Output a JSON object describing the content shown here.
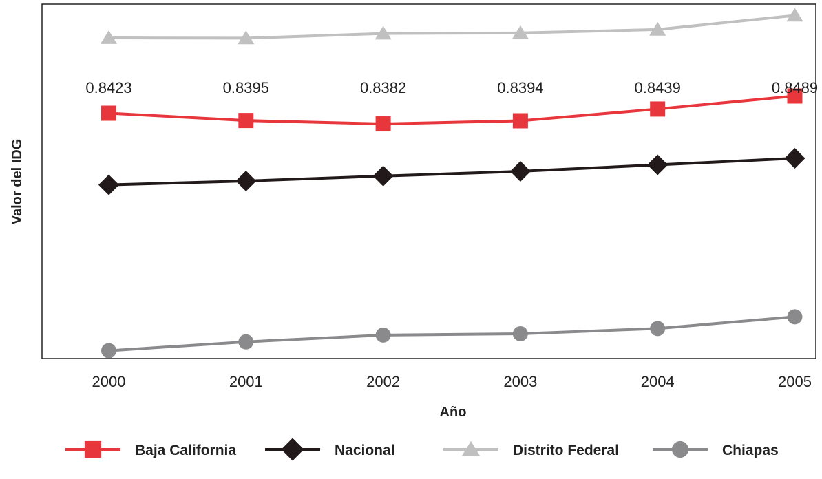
{
  "chart_data": {
    "type": "line",
    "categories": [
      "2000",
      "2001",
      "2002",
      "2003",
      "2004",
      "2005"
    ],
    "xlabel": "Año",
    "ylabel": "Valor del IDG",
    "y_ticks_shown": false,
    "grid": false,
    "legend_position": "bottom",
    "series": [
      {
        "name": "Distrito Federal",
        "color": "#c0c0c0",
        "marker": "triangle",
        "values": [
          0.8712,
          0.8711,
          0.8729,
          0.8731,
          0.8744,
          0.8798
        ],
        "labels_shown": false
      },
      {
        "name": "Baja California",
        "color": "#e8363d",
        "marker": "square",
        "values": [
          0.8423,
          0.8395,
          0.8382,
          0.8394,
          0.8439,
          0.8489
        ],
        "labels_shown": true
      },
      {
        "name": "Nacional",
        "color": "#221a1a",
        "marker": "diamond",
        "values": [
          0.8148,
          0.8163,
          0.8182,
          0.82,
          0.8225,
          0.825
        ],
        "labels_shown": false
      },
      {
        "name": "Chiapas",
        "color": "#8a8a8c",
        "marker": "circle",
        "values": [
          0.7512,
          0.7546,
          0.7572,
          0.7577,
          0.7597,
          0.7642
        ],
        "labels_shown": false
      }
    ],
    "legend_order": [
      "Baja California",
      "Nacional",
      "Distrito Federal",
      "Chiapas"
    ]
  }
}
